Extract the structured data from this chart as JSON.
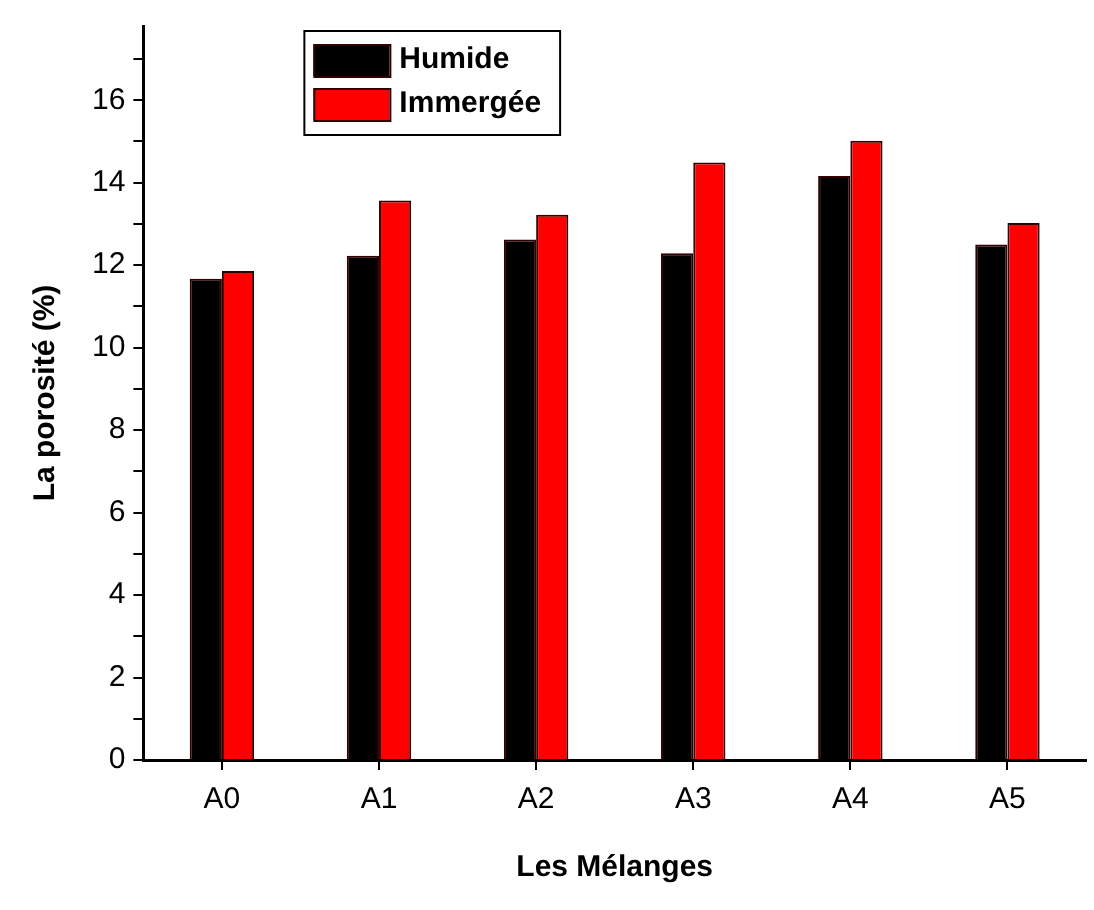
{
  "chart_data": {
    "type": "bar",
    "xlabel": "Les Mélanges",
    "ylabel": "La porosité (%)",
    "categories": [
      "A0",
      "A1",
      "A2",
      "A3",
      "A4",
      "A5"
    ],
    "series": [
      {
        "name": "Humide",
        "color": "#000000",
        "values": [
          11.67,
          12.23,
          12.62,
          12.29,
          14.16,
          12.5
        ]
      },
      {
        "name": "Immergée",
        "color": "#ff0000",
        "values": [
          11.86,
          13.57,
          13.22,
          14.49,
          15.02,
          13.02
        ]
      }
    ],
    "ylim": [
      0,
      17.8
    ],
    "yticks": [
      0,
      {
        "value": 1,
        "label": null
      },
      2,
      {
        "value": 3,
        "label": null
      },
      4,
      {
        "value": 5,
        "label": null
      },
      6,
      {
        "value": 7,
        "label": null
      },
      8,
      {
        "value": 9,
        "label": null
      },
      10,
      {
        "value": 11,
        "label": null
      },
      12,
      {
        "value": 13,
        "label": null
      },
      14,
      {
        "value": 15,
        "label": null
      },
      16,
      {
        "value": 17,
        "label": null
      }
    ],
    "grid": false,
    "legend": "top left"
  }
}
